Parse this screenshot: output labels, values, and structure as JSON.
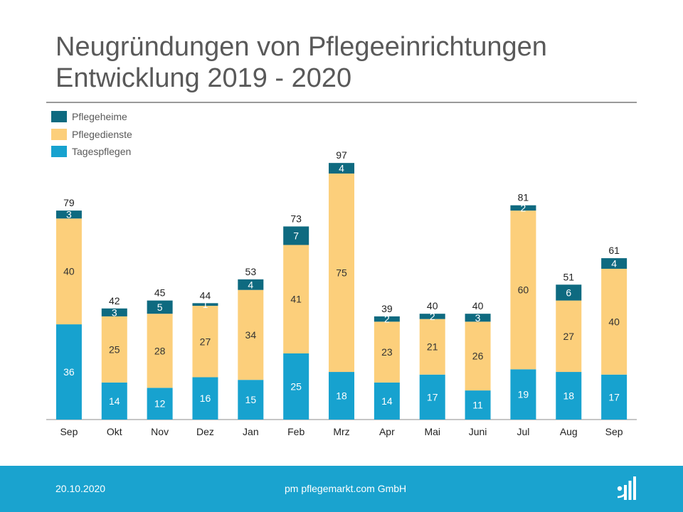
{
  "header": {
    "title_line1": "Neugründungen von Pflegeeinrichtungen",
    "title_line2": "Entwicklung 2019 - 2020"
  },
  "colors": {
    "pflegeheime": "#0e6a80",
    "pflegedienste": "#fccf7b",
    "tagespflegen": "#17a2cf",
    "footer": "#1aa3cf"
  },
  "chart_data": {
    "type": "bar",
    "stacked": true,
    "title": "Neugründungen von Pflegeeinrichtungen Entwicklung 2019 - 2020",
    "categories": [
      "Sep",
      "Okt",
      "Nov",
      "Dez",
      "Jan",
      "Feb",
      "Mrz",
      "Apr",
      "Mai",
      "Juni",
      "Jul",
      "Aug",
      "Sep"
    ],
    "series": [
      {
        "name": "Tagespflegen",
        "values": [
          36,
          14,
          12,
          16,
          15,
          25,
          18,
          14,
          17,
          11,
          19,
          18,
          17
        ]
      },
      {
        "name": "Pflegedienste",
        "values": [
          40,
          25,
          28,
          27,
          34,
          41,
          75,
          23,
          21,
          26,
          60,
          27,
          40
        ]
      },
      {
        "name": "Pflegeheime",
        "values": [
          3,
          3,
          5,
          1,
          4,
          7,
          4,
          2,
          2,
          3,
          2,
          6,
          4
        ]
      }
    ],
    "totals": [
      79,
      42,
      45,
      44,
      53,
      73,
      97,
      39,
      40,
      40,
      81,
      51,
      61
    ],
    "legend": [
      "Pflegeheime",
      "Pflegedienste",
      "Tagespflegen"
    ],
    "legend_position": "top-left",
    "xlabel": "",
    "ylabel": "",
    "ylim": [
      0,
      100
    ],
    "grid": false
  },
  "footer": {
    "date": "20.10.2020",
    "company": "pm pflegemarkt.com GmbH"
  }
}
